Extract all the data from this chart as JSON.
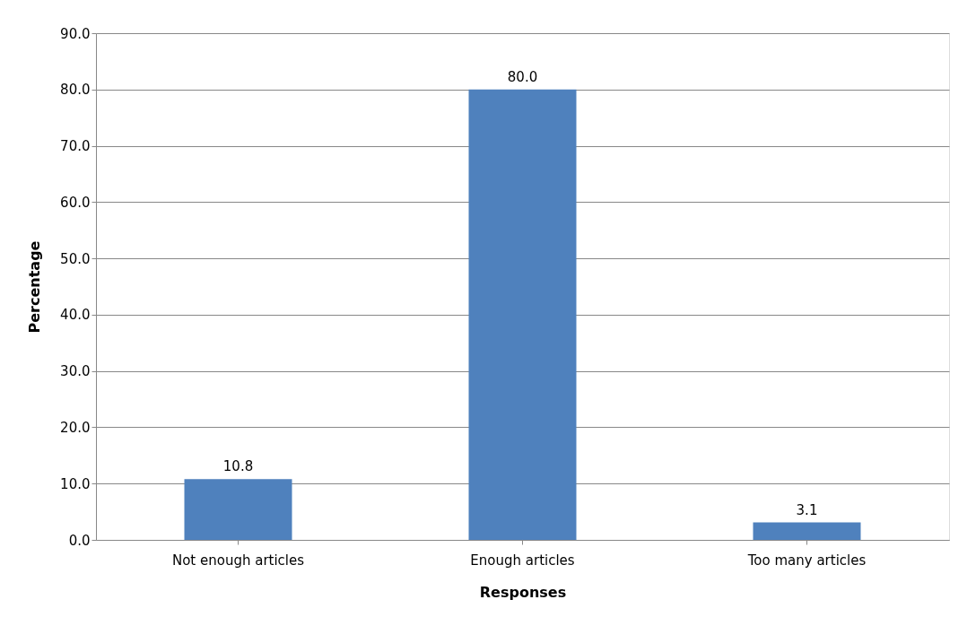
{
  "chart_data": {
    "type": "bar",
    "xlabel": "Responses",
    "ylabel": "Percentage",
    "categories": [
      "Not enough articles",
      "Enough articles",
      "Too many articles"
    ],
    "values": [
      10.8,
      80.0,
      3.1
    ],
    "color": "#4f81bd",
    "value_labels": [
      "10.8",
      "80.0",
      "3.1"
    ],
    "ylim": [
      0,
      90
    ],
    "yticks": [
      {
        "value": 0,
        "label": "0.0"
      },
      {
        "value": 10,
        "label": "10.0"
      },
      {
        "value": 20,
        "label": "20.0"
      },
      {
        "value": 30,
        "label": "30.0"
      },
      {
        "value": 40,
        "label": "40.0"
      },
      {
        "value": 50,
        "label": "50.0"
      },
      {
        "value": 60,
        "label": "60.0"
      },
      {
        "value": 70,
        "label": "70.0"
      },
      {
        "value": 80,
        "label": "80.0"
      },
      {
        "value": 90,
        "label": "90.0"
      }
    ],
    "grid": "y"
  }
}
